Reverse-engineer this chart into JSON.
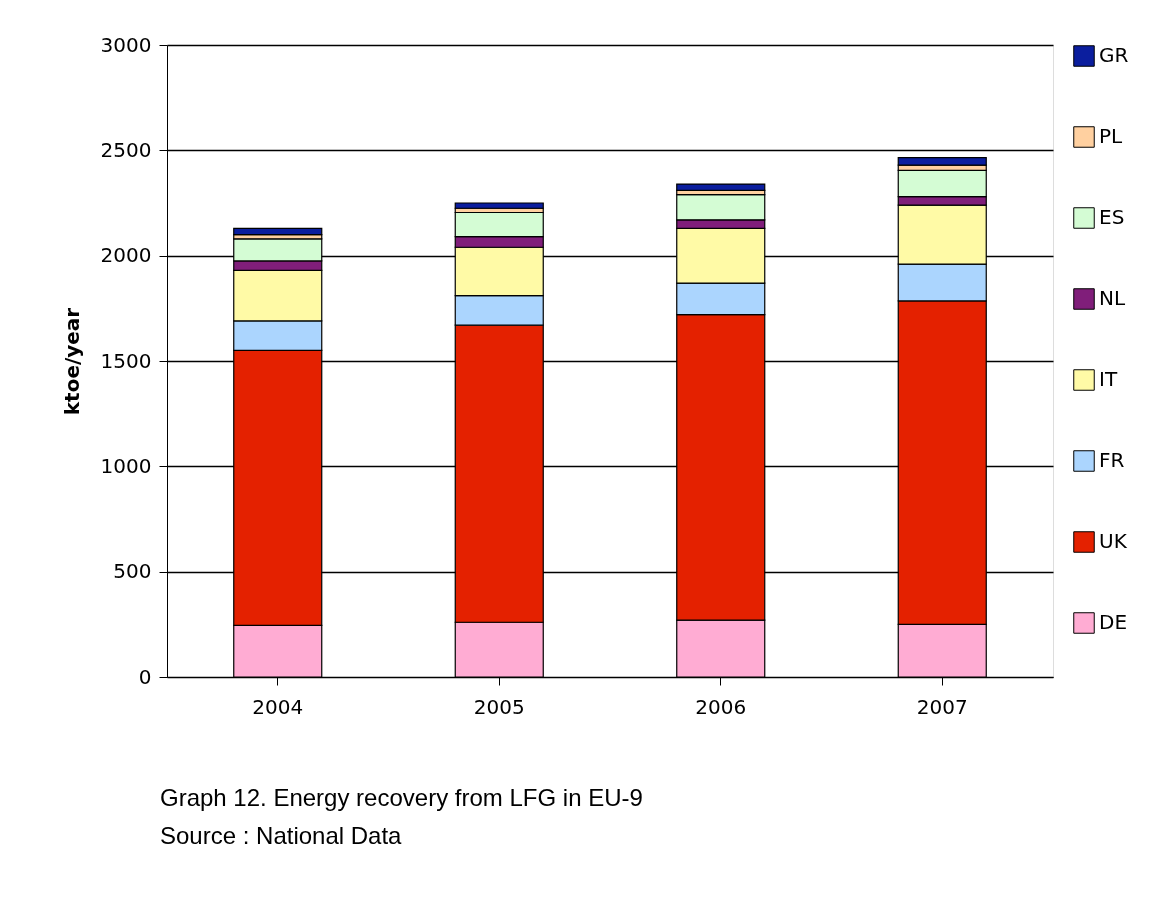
{
  "chart_data": {
    "type": "bar",
    "stacked": true,
    "ylabel": "ktoe/year",
    "categories": [
      "2004",
      "2005",
      "2006",
      "2007"
    ],
    "series": [
      {
        "name": "DE",
        "color": "#ffacd3",
        "values": [
          245,
          260,
          270,
          250
        ]
      },
      {
        "name": "UK",
        "color": "#e42100",
        "values": [
          1305,
          1410,
          1450,
          1535
        ]
      },
      {
        "name": "FR",
        "color": "#abd5fe",
        "values": [
          140,
          140,
          150,
          175
        ]
      },
      {
        "name": "IT",
        "color": "#fffaa6",
        "values": [
          240,
          230,
          260,
          280
        ]
      },
      {
        "name": "NL",
        "color": "#801e7a",
        "values": [
          45,
          50,
          40,
          40
        ]
      },
      {
        "name": "ES",
        "color": "#d4fcd4",
        "values": [
          105,
          115,
          120,
          125
        ]
      },
      {
        "name": "PL",
        "color": "#ffd0a0",
        "values": [
          20,
          20,
          20,
          25
        ]
      },
      {
        "name": "GR",
        "color": "#0b1e9e",
        "values": [
          30,
          25,
          30,
          35
        ]
      }
    ],
    "ylim": [
      0,
      3000
    ],
    "yticks": [
      0,
      500,
      1000,
      1500,
      2000,
      2500,
      3000
    ],
    "grid": "y",
    "legend": "right",
    "annotations": [
      "Graph 12. Energy recovery from LFG in EU-9",
      "Source : National Data"
    ]
  }
}
